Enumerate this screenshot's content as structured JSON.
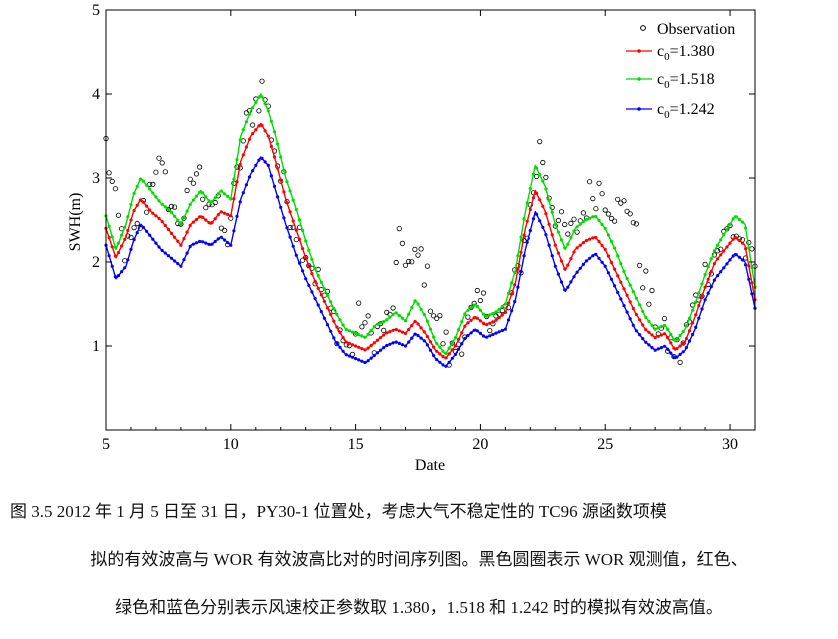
{
  "caption": {
    "line1": "图 3.5   2012 年 1 月 5 日至 31 日，PY30-1 位置处，考虑大气不稳定性的 TC96 源函数项模",
    "line2": "拟的有效波高与 WOR 有效波高比对的时间序列图。黑色圆圈表示 WOR 观测值，红色、",
    "line3": "绿色和蓝色分别表示风速校正参数取 1.380，1.518 和 1.242 时的模拟有效波高值。"
  },
  "chart_data": {
    "type": "line",
    "title": "",
    "xlabel": "Date",
    "ylabel": "SWH(m)",
    "xlim": [
      5,
      31
    ],
    "ylim": [
      0,
      5
    ],
    "xticks": [
      5,
      10,
      15,
      20,
      25,
      30
    ],
    "yticks": [
      1,
      2,
      3,
      4,
      5
    ],
    "grid": false,
    "legend_position": "top-right",
    "legend": [
      {
        "label": "Observation",
        "color": "#000000",
        "marker": "circle"
      },
      {
        "label_main": "c",
        "label_sub": "0",
        "label_rest": "=1.380",
        "color": "#ff0000",
        "marker": "dot-line"
      },
      {
        "label_main": "c",
        "label_sub": "0",
        "label_rest": "=1.518",
        "color": "#00dd00",
        "marker": "dot-line"
      },
      {
        "label_main": "c",
        "label_sub": "0",
        "label_rest": "=1.242",
        "color": "#0000ff",
        "marker": "dot-line"
      }
    ],
    "series": [
      {
        "key": "c1380",
        "color": "#ff0000",
        "points": [
          [
            5.0,
            2.4
          ],
          [
            5.4,
            2.05
          ],
          [
            5.8,
            2.3
          ],
          [
            6.1,
            2.6
          ],
          [
            6.4,
            2.75
          ],
          [
            6.8,
            2.6
          ],
          [
            7.2,
            2.5
          ],
          [
            7.6,
            2.35
          ],
          [
            8.0,
            2.2
          ],
          [
            8.4,
            2.45
          ],
          [
            8.8,
            2.55
          ],
          [
            9.2,
            2.45
          ],
          [
            9.6,
            2.6
          ],
          [
            10.0,
            2.55
          ],
          [
            10.4,
            3.2
          ],
          [
            10.8,
            3.5
          ],
          [
            11.2,
            3.65
          ],
          [
            11.5,
            3.5
          ],
          [
            11.8,
            3.2
          ],
          [
            12.2,
            2.75
          ],
          [
            12.6,
            2.4
          ],
          [
            13.0,
            2.05
          ],
          [
            13.4,
            1.75
          ],
          [
            13.8,
            1.5
          ],
          [
            14.2,
            1.25
          ],
          [
            14.6,
            1.05
          ],
          [
            15.0,
            1.0
          ],
          [
            15.4,
            0.95
          ],
          [
            15.8,
            1.05
          ],
          [
            16.2,
            1.15
          ],
          [
            16.6,
            1.2
          ],
          [
            17.0,
            1.15
          ],
          [
            17.4,
            1.3
          ],
          [
            17.8,
            1.15
          ],
          [
            18.2,
            0.95
          ],
          [
            18.6,
            0.85
          ],
          [
            19.0,
            1.0
          ],
          [
            19.4,
            1.25
          ],
          [
            19.8,
            1.35
          ],
          [
            20.2,
            1.25
          ],
          [
            20.6,
            1.3
          ],
          [
            21.0,
            1.4
          ],
          [
            21.4,
            1.75
          ],
          [
            21.8,
            2.4
          ],
          [
            22.2,
            2.85
          ],
          [
            22.6,
            2.6
          ],
          [
            23.0,
            2.2
          ],
          [
            23.4,
            1.9
          ],
          [
            23.8,
            2.15
          ],
          [
            24.2,
            2.25
          ],
          [
            24.6,
            2.3
          ],
          [
            25.0,
            2.15
          ],
          [
            25.4,
            1.9
          ],
          [
            25.8,
            1.65
          ],
          [
            26.2,
            1.4
          ],
          [
            26.6,
            1.2
          ],
          [
            27.0,
            1.1
          ],
          [
            27.4,
            1.15
          ],
          [
            27.8,
            0.95
          ],
          [
            28.2,
            1.05
          ],
          [
            28.6,
            1.35
          ],
          [
            29.0,
            1.7
          ],
          [
            29.4,
            2.0
          ],
          [
            29.8,
            2.15
          ],
          [
            30.2,
            2.3
          ],
          [
            30.6,
            2.2
          ],
          [
            31.0,
            1.55
          ]
        ]
      },
      {
        "key": "c1518",
        "color": "#00dd00",
        "points": [
          [
            5.0,
            2.55
          ],
          [
            5.4,
            2.15
          ],
          [
            5.8,
            2.45
          ],
          [
            6.1,
            2.8
          ],
          [
            6.4,
            3.0
          ],
          [
            6.8,
            2.85
          ],
          [
            7.2,
            2.7
          ],
          [
            7.6,
            2.6
          ],
          [
            8.0,
            2.45
          ],
          [
            8.4,
            2.7
          ],
          [
            8.8,
            2.85
          ],
          [
            9.2,
            2.7
          ],
          [
            9.6,
            2.85
          ],
          [
            10.0,
            2.75
          ],
          [
            10.4,
            3.5
          ],
          [
            10.8,
            3.8
          ],
          [
            11.2,
            4.0
          ],
          [
            11.5,
            3.8
          ],
          [
            11.8,
            3.5
          ],
          [
            12.2,
            3.0
          ],
          [
            12.6,
            2.65
          ],
          [
            13.0,
            2.25
          ],
          [
            13.4,
            1.9
          ],
          [
            13.8,
            1.65
          ],
          [
            14.2,
            1.4
          ],
          [
            14.6,
            1.2
          ],
          [
            15.0,
            1.15
          ],
          [
            15.4,
            1.1
          ],
          [
            15.8,
            1.25
          ],
          [
            16.2,
            1.3
          ],
          [
            16.6,
            1.4
          ],
          [
            17.0,
            1.3
          ],
          [
            17.4,
            1.55
          ],
          [
            17.8,
            1.35
          ],
          [
            18.2,
            1.05
          ],
          [
            18.6,
            0.9
          ],
          [
            19.0,
            1.1
          ],
          [
            19.4,
            1.4
          ],
          [
            19.8,
            1.5
          ],
          [
            20.2,
            1.35
          ],
          [
            20.6,
            1.4
          ],
          [
            21.0,
            1.5
          ],
          [
            21.4,
            1.9
          ],
          [
            21.8,
            2.6
          ],
          [
            22.2,
            3.15
          ],
          [
            22.6,
            2.9
          ],
          [
            23.0,
            2.45
          ],
          [
            23.4,
            2.15
          ],
          [
            23.8,
            2.4
          ],
          [
            24.2,
            2.5
          ],
          [
            24.6,
            2.55
          ],
          [
            25.0,
            2.4
          ],
          [
            25.4,
            2.15
          ],
          [
            25.8,
            1.85
          ],
          [
            26.2,
            1.6
          ],
          [
            26.6,
            1.35
          ],
          [
            27.0,
            1.2
          ],
          [
            27.4,
            1.25
          ],
          [
            27.8,
            1.05
          ],
          [
            28.2,
            1.2
          ],
          [
            28.6,
            1.5
          ],
          [
            29.0,
            1.85
          ],
          [
            29.4,
            2.15
          ],
          [
            29.8,
            2.35
          ],
          [
            30.2,
            2.55
          ],
          [
            30.6,
            2.45
          ],
          [
            31.0,
            1.7
          ]
        ]
      },
      {
        "key": "c1242",
        "color": "#0000ff",
        "points": [
          [
            5.0,
            2.2
          ],
          [
            5.4,
            1.8
          ],
          [
            5.8,
            1.95
          ],
          [
            6.1,
            2.25
          ],
          [
            6.4,
            2.45
          ],
          [
            6.8,
            2.3
          ],
          [
            7.2,
            2.15
          ],
          [
            7.6,
            2.05
          ],
          [
            8.0,
            1.95
          ],
          [
            8.4,
            2.2
          ],
          [
            8.8,
            2.25
          ],
          [
            9.2,
            2.2
          ],
          [
            9.6,
            2.3
          ],
          [
            10.0,
            2.2
          ],
          [
            10.4,
            2.75
          ],
          [
            10.8,
            3.05
          ],
          [
            11.2,
            3.25
          ],
          [
            11.5,
            3.15
          ],
          [
            11.8,
            2.85
          ],
          [
            12.2,
            2.45
          ],
          [
            12.6,
            2.1
          ],
          [
            13.0,
            1.8
          ],
          [
            13.4,
            1.55
          ],
          [
            13.8,
            1.3
          ],
          [
            14.2,
            1.05
          ],
          [
            14.6,
            0.9
          ],
          [
            15.0,
            0.85
          ],
          [
            15.4,
            0.8
          ],
          [
            15.8,
            0.9
          ],
          [
            16.2,
            1.0
          ],
          [
            16.6,
            1.05
          ],
          [
            17.0,
            1.0
          ],
          [
            17.4,
            1.15
          ],
          [
            17.8,
            1.05
          ],
          [
            18.2,
            0.85
          ],
          [
            18.6,
            0.75
          ],
          [
            19.0,
            0.9
          ],
          [
            19.4,
            1.1
          ],
          [
            19.8,
            1.2
          ],
          [
            20.2,
            1.1
          ],
          [
            20.6,
            1.15
          ],
          [
            21.0,
            1.2
          ],
          [
            21.4,
            1.55
          ],
          [
            21.8,
            2.15
          ],
          [
            22.2,
            2.6
          ],
          [
            22.6,
            2.35
          ],
          [
            23.0,
            1.95
          ],
          [
            23.4,
            1.65
          ],
          [
            23.8,
            1.85
          ],
          [
            24.2,
            2.0
          ],
          [
            24.6,
            2.1
          ],
          [
            25.0,
            1.95
          ],
          [
            25.4,
            1.7
          ],
          [
            25.8,
            1.45
          ],
          [
            26.2,
            1.2
          ],
          [
            26.6,
            1.05
          ],
          [
            27.0,
            0.95
          ],
          [
            27.4,
            1.0
          ],
          [
            27.8,
            0.85
          ],
          [
            28.2,
            0.95
          ],
          [
            28.6,
            1.2
          ],
          [
            29.0,
            1.55
          ],
          [
            29.4,
            1.8
          ],
          [
            29.8,
            1.95
          ],
          [
            30.2,
            2.1
          ],
          [
            30.6,
            2.0
          ],
          [
            31.0,
            1.45
          ]
        ]
      }
    ],
    "observation_trend": [
      [
        5.0,
        3.4
      ],
      [
        5.4,
        2.6
      ],
      [
        5.8,
        2.1
      ],
      [
        6.2,
        2.3
      ],
      [
        6.6,
        2.7
      ],
      [
        7.0,
        3.2
      ],
      [
        7.4,
        2.9
      ],
      [
        7.8,
        2.5
      ],
      [
        8.2,
        2.6
      ],
      [
        8.6,
        3.1
      ],
      [
        9.0,
        2.8
      ],
      [
        9.4,
        2.7
      ],
      [
        9.8,
        2.2
      ],
      [
        10.2,
        2.9
      ],
      [
        10.6,
        3.6
      ],
      [
        11.0,
        3.9
      ],
      [
        11.3,
        4.1
      ],
      [
        11.6,
        3.6
      ],
      [
        12.0,
        3.0
      ],
      [
        12.4,
        2.6
      ],
      [
        12.8,
        2.3
      ],
      [
        13.2,
        2.0
      ],
      [
        13.6,
        1.7
      ],
      [
        14.0,
        1.4
      ],
      [
        14.4,
        1.15
      ],
      [
        14.8,
        0.9
      ],
      [
        15.2,
        1.4
      ],
      [
        15.6,
        1.1
      ],
      [
        16.0,
        1.2
      ],
      [
        16.4,
        1.3
      ],
      [
        16.8,
        2.3
      ],
      [
        17.2,
        1.9
      ],
      [
        17.6,
        2.1
      ],
      [
        18.0,
        1.6
      ],
      [
        18.4,
        1.2
      ],
      [
        18.8,
        0.85
      ],
      [
        19.2,
        1.1
      ],
      [
        19.6,
        1.3
      ],
      [
        20.0,
        1.5
      ],
      [
        20.4,
        1.4
      ],
      [
        20.8,
        1.3
      ],
      [
        21.2,
        1.5
      ],
      [
        21.6,
        2.0
      ],
      [
        22.0,
        2.6
      ],
      [
        22.4,
        3.4
      ],
      [
        22.8,
        2.8
      ],
      [
        23.2,
        2.4
      ],
      [
        23.6,
        2.3
      ],
      [
        24.0,
        2.5
      ],
      [
        24.4,
        2.8
      ],
      [
        24.8,
        2.9
      ],
      [
        25.2,
        2.7
      ],
      [
        25.6,
        2.6
      ],
      [
        26.0,
        2.7
      ],
      [
        26.4,
        2.0
      ],
      [
        26.8,
        1.5
      ],
      [
        27.2,
        1.2
      ],
      [
        27.6,
        1.0
      ],
      [
        28.0,
        0.9
      ],
      [
        28.4,
        1.3
      ],
      [
        28.8,
        1.7
      ],
      [
        29.2,
        2.0
      ],
      [
        29.6,
        2.2
      ],
      [
        30.0,
        2.4
      ],
      [
        30.4,
        2.3
      ],
      [
        30.8,
        2.0
      ],
      [
        31.0,
        1.9
      ]
    ]
  }
}
